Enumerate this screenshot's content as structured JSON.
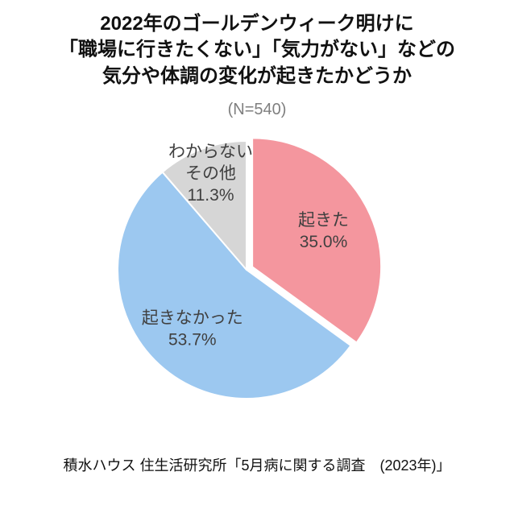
{
  "chart_data": {
    "type": "pie",
    "title": "2022年のゴールデンウィーク明けに\n「職場に行きたくない」「気力がない」などの\n気分や体調の変化が起きたかどうか",
    "subtitle": "(N=540)",
    "source": "積水ハウス 住生活研究所「5月病に関する調査　(2023年)」",
    "start_angle_deg": 0,
    "direction": "clockwise",
    "label_color": "#404040",
    "slice_border_color": "#ffffff",
    "slices": [
      {
        "label": "起きた",
        "value": 35.0,
        "display": "35.0%",
        "color": "#F4969E",
        "explode": 8,
        "label_r": 0.62
      },
      {
        "label": "起きなかった",
        "value": 53.7,
        "display": "53.7%",
        "color": "#9CC8F0",
        "explode": 0,
        "label_r": 0.62
      },
      {
        "label": "わからない\nその他",
        "value": 11.3,
        "display": "11.3%",
        "color": "#D6D6D6",
        "explode": 0,
        "label_r": 0.8
      }
    ]
  }
}
